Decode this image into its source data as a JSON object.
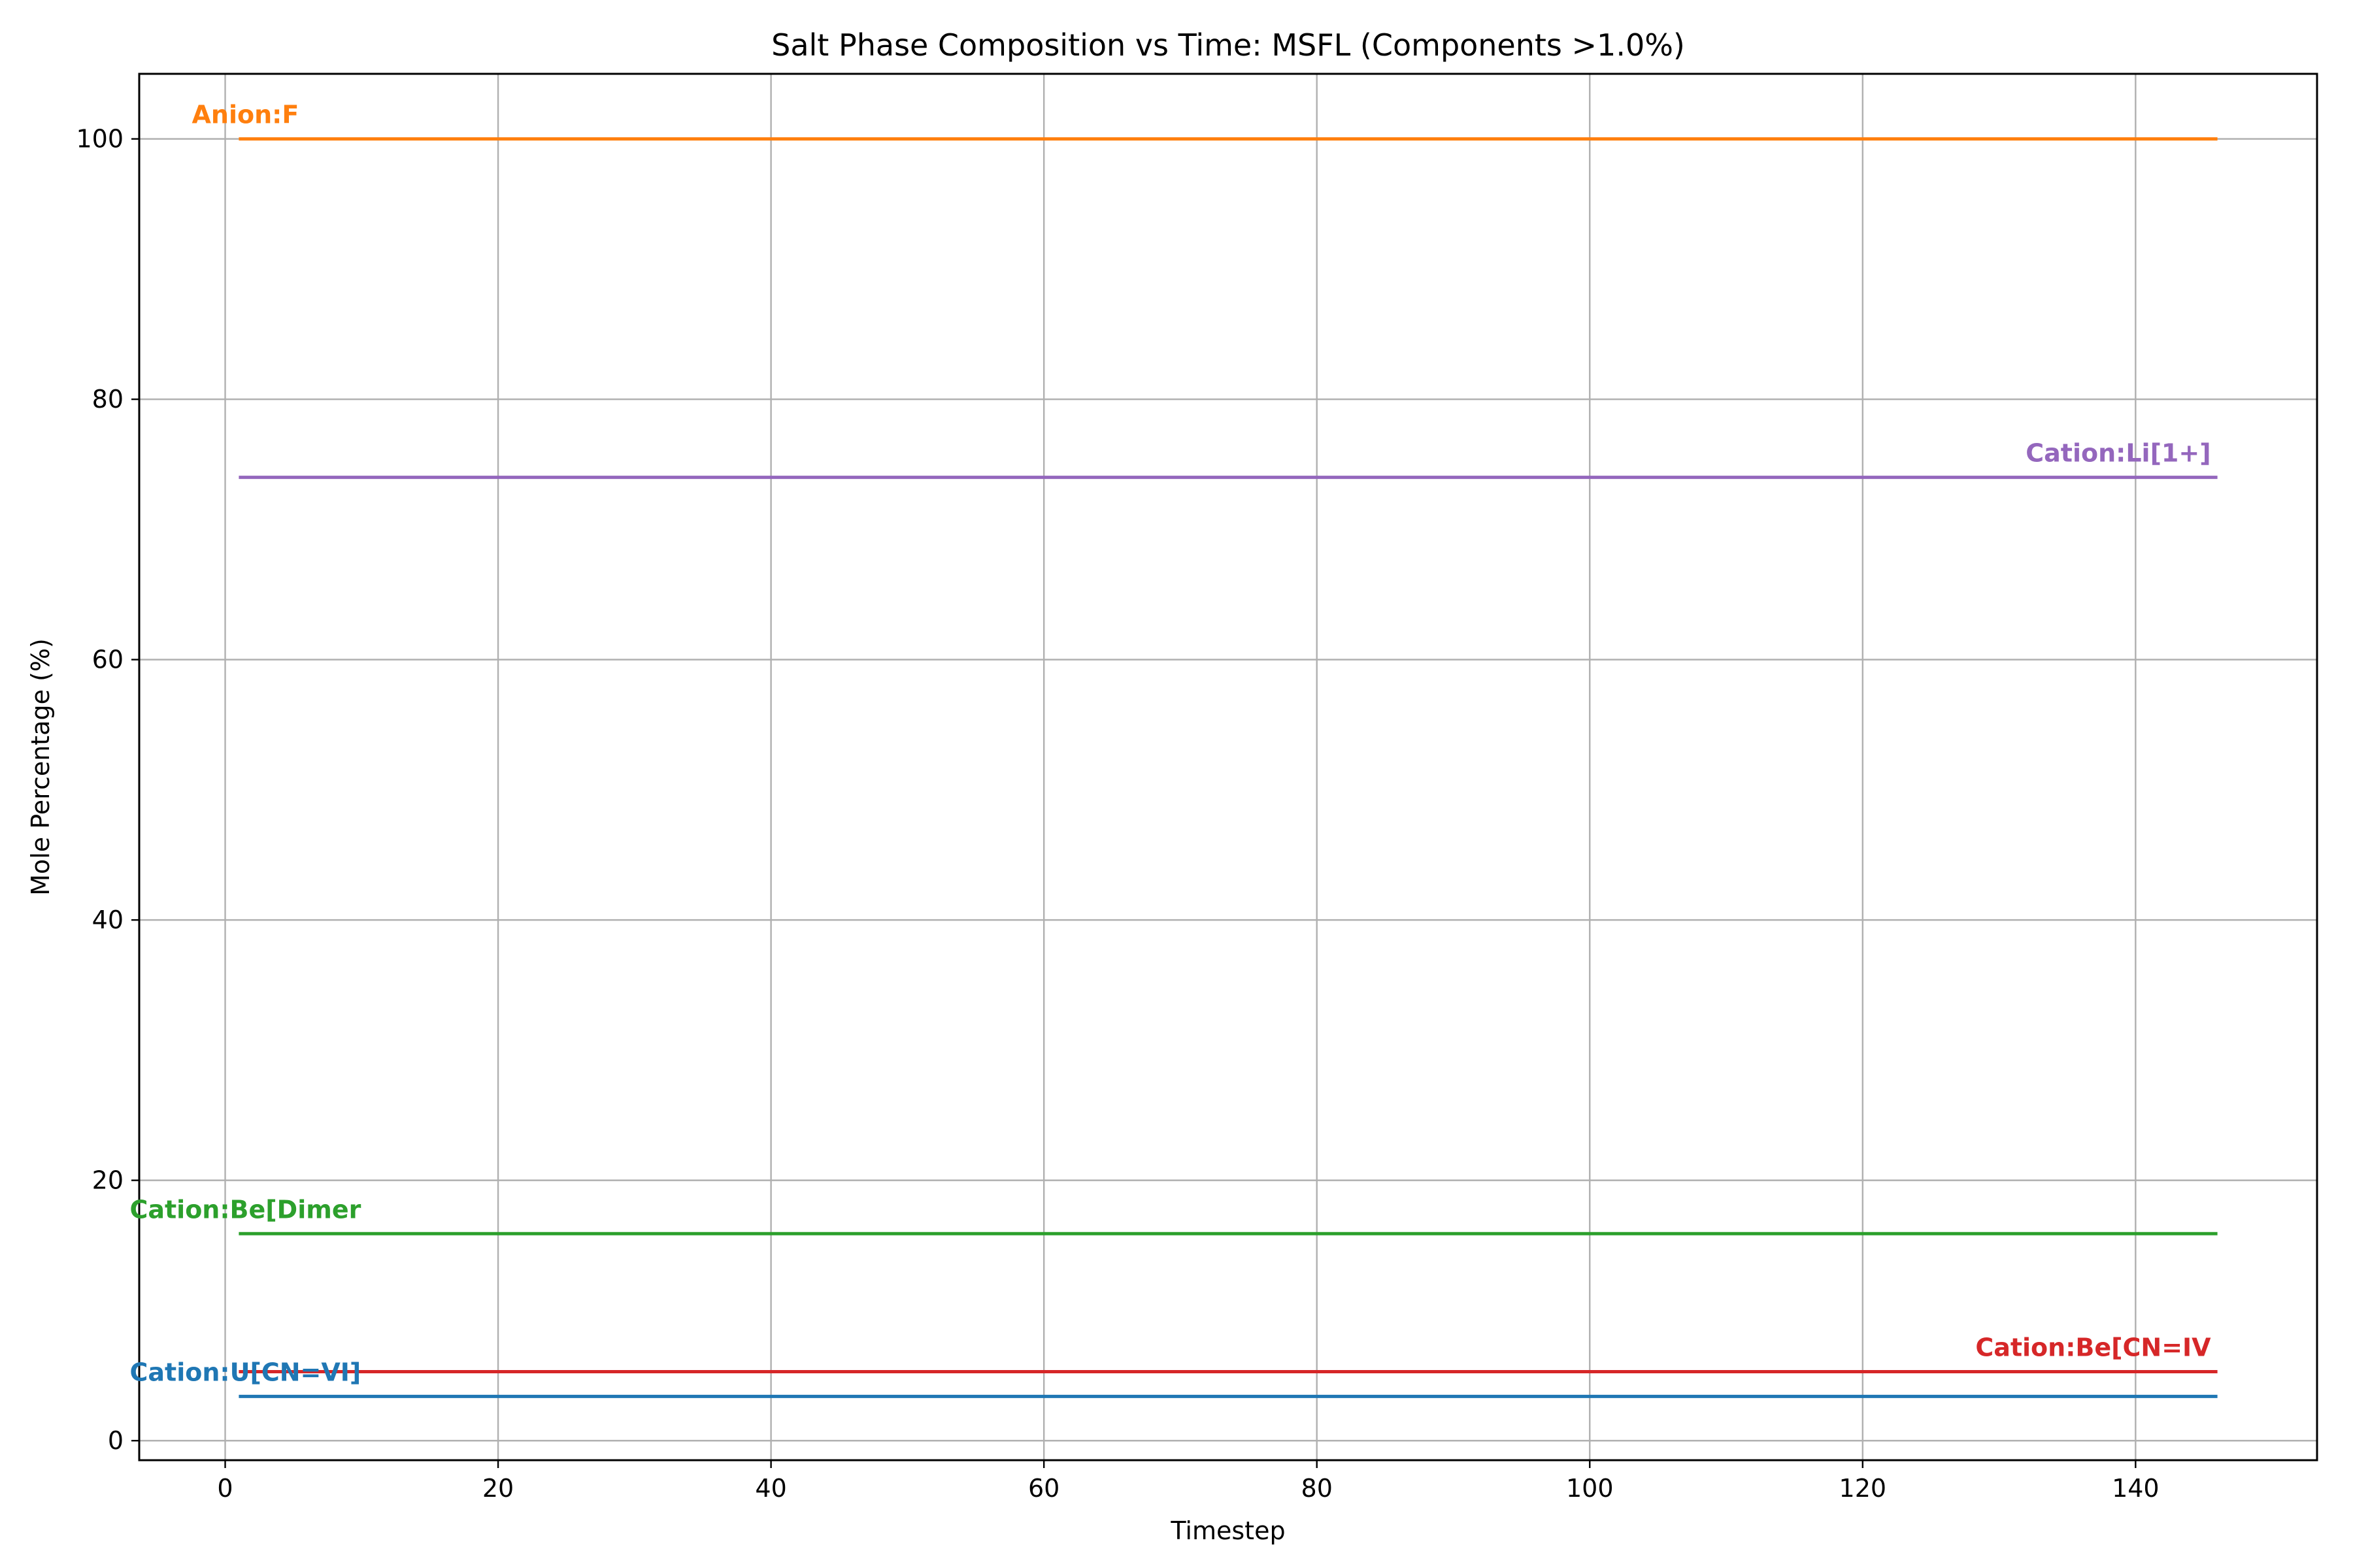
{
  "chart_data": {
    "type": "line",
    "title": "Salt Phase Composition vs Time: MSFL (Components >1.0%)",
    "xlabel": "Timestep",
    "ylabel": "Mole Percentage (%)",
    "xlim": [
      -6.3,
      153.3
    ],
    "ylim": [
      -1.5,
      105.0
    ],
    "xticks": [
      0,
      20,
      40,
      60,
      80,
      100,
      120,
      140
    ],
    "yticks": [
      0,
      20,
      40,
      60,
      80,
      100
    ],
    "grid": true,
    "x_range": [
      1,
      146
    ],
    "series": [
      {
        "name": "Anion:F",
        "color": "#ff7f0e",
        "x": [
          1,
          146
        ],
        "values": [
          100.0,
          100.0
        ],
        "label_anchor": "start"
      },
      {
        "name": "Cation:Li[1+]",
        "color": "#9467bd",
        "x": [
          1,
          146
        ],
        "values": [
          74.0,
          74.0
        ],
        "label_anchor": "end"
      },
      {
        "name": "Cation:Be[Dimer",
        "color": "#2ca02c",
        "x": [
          1,
          146
        ],
        "values": [
          15.9,
          15.9
        ],
        "label_anchor": "start"
      },
      {
        "name": "Cation:Be[CN=IV",
        "color": "#d62728",
        "x": [
          1,
          146
        ],
        "values": [
          5.3,
          5.3
        ],
        "label_anchor": "end"
      },
      {
        "name": "Cation:U[CN=VI]",
        "color": "#1f77b4",
        "x": [
          1,
          146
        ],
        "values": [
          3.4,
          3.4
        ],
        "label_anchor": "start"
      }
    ]
  }
}
